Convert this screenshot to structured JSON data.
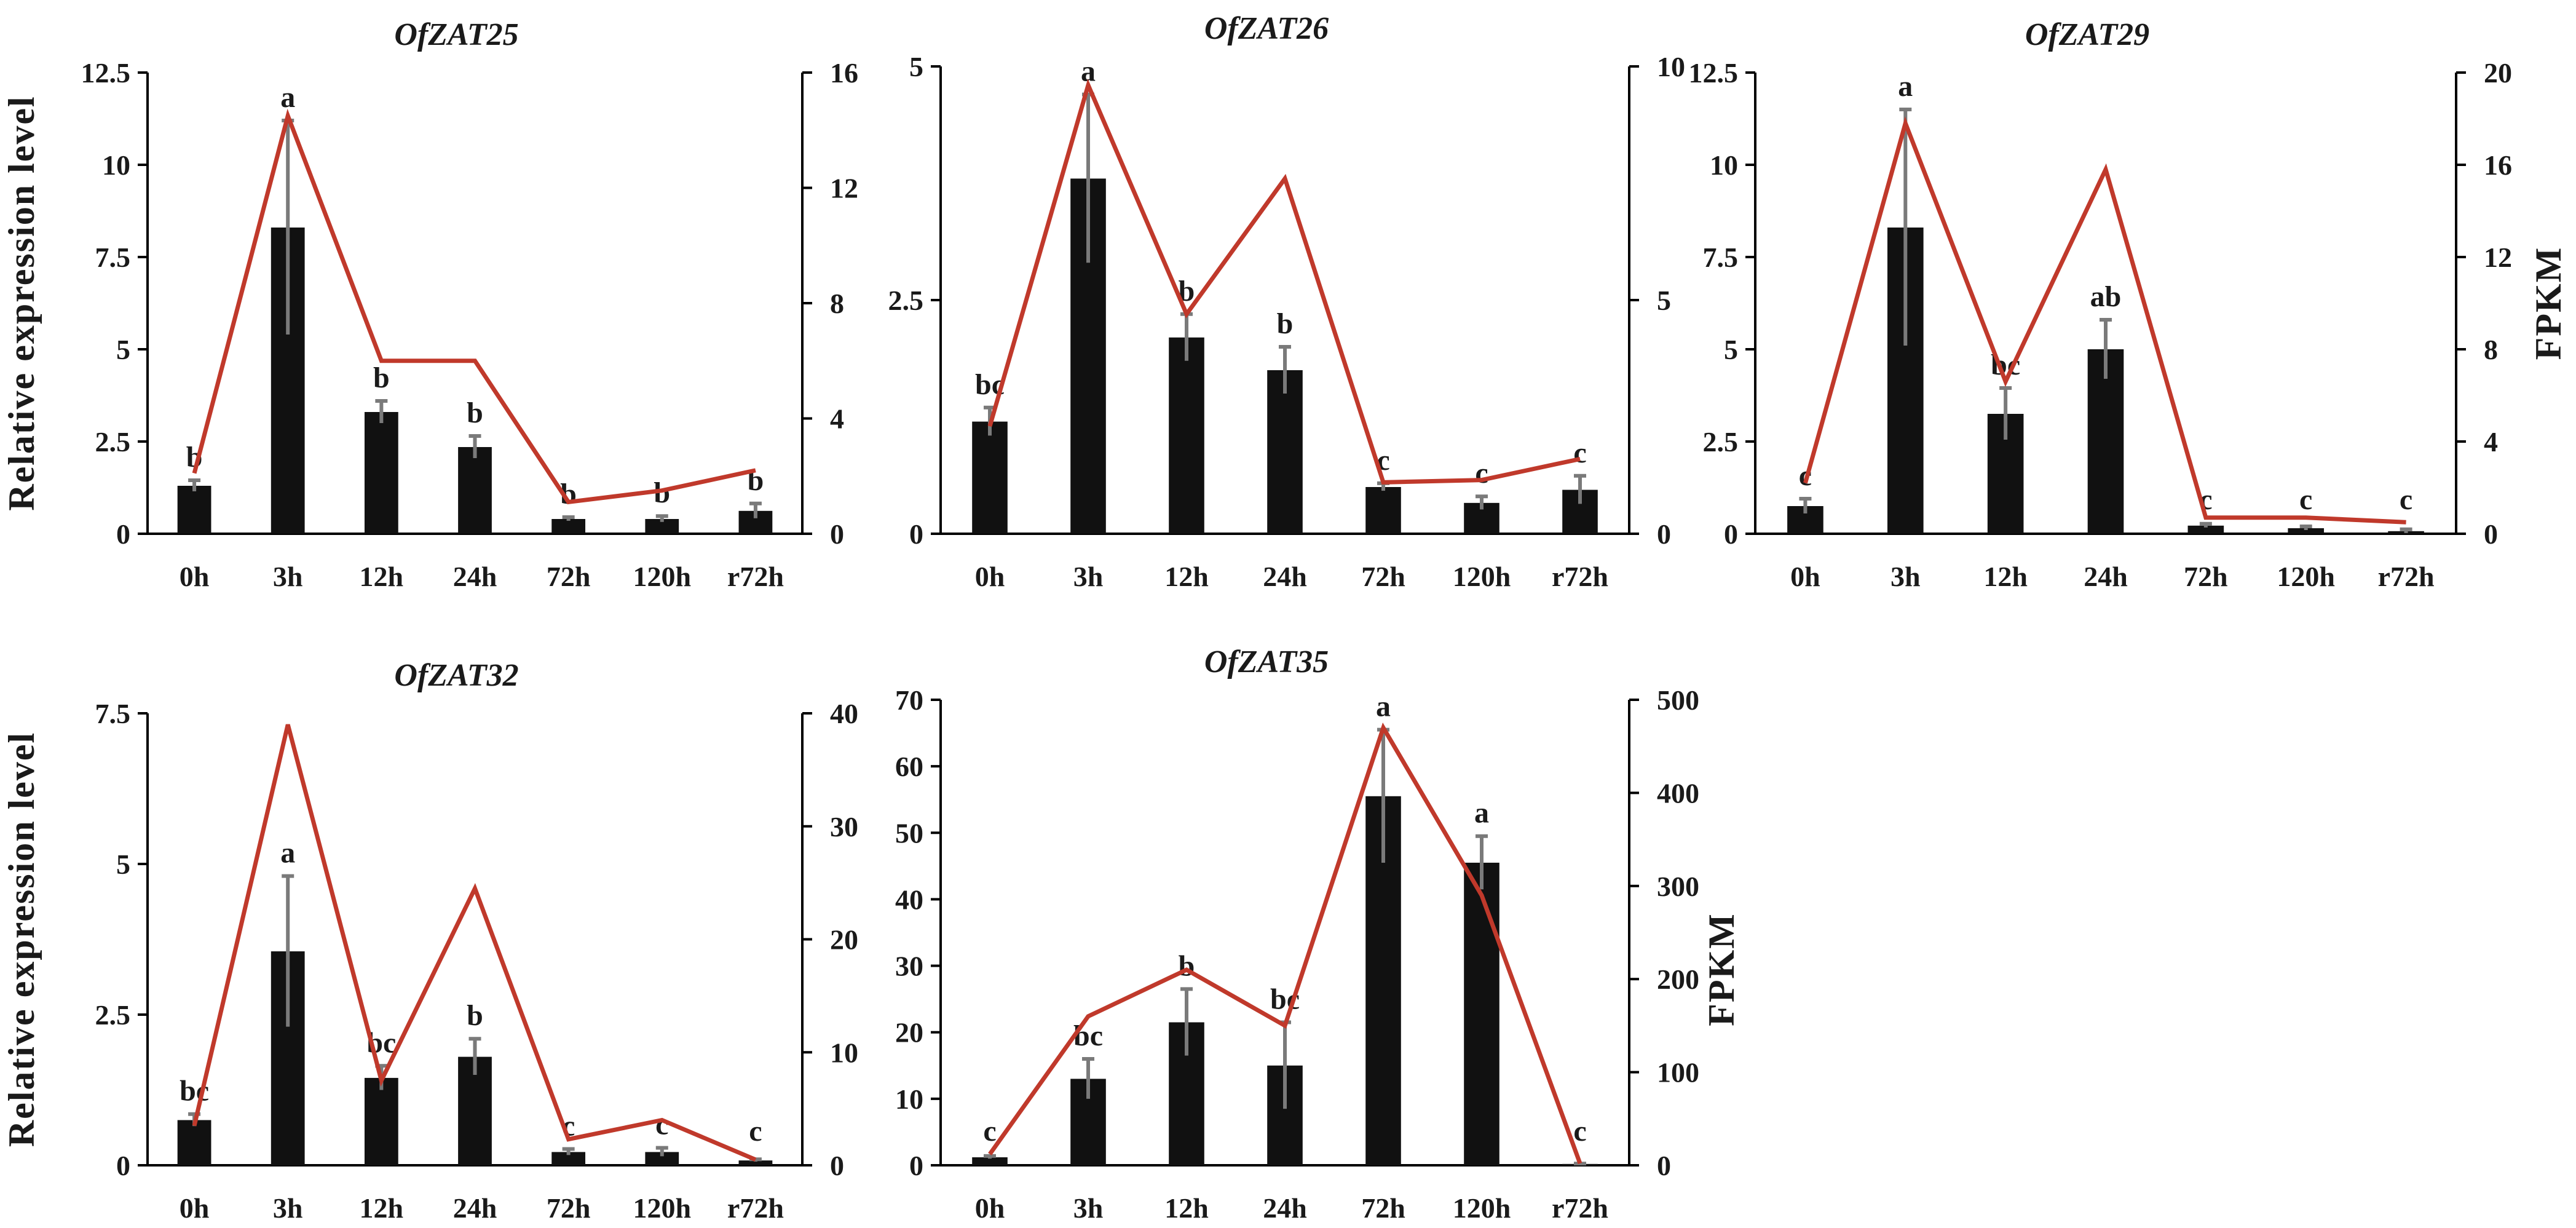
{
  "chart_data": [
    {
      "type": "bar",
      "title": "OfZAT25",
      "ylabel": "Relative expression level",
      "y2label": "",
      "categories": [
        "0h",
        "3h",
        "12h",
        "24h",
        "72h",
        "120h",
        "r72h"
      ],
      "ylim": [
        0,
        12.5
      ],
      "yticks": [
        "0",
        "2.5",
        "5",
        "7.5",
        "10",
        "12.5"
      ],
      "y2lim": [
        0,
        16
      ],
      "y2ticks": [
        "0",
        "4",
        "8",
        "12",
        "16"
      ],
      "series": [
        {
          "type": "bar",
          "axis": "left",
          "values": [
            1.3,
            8.3,
            3.3,
            2.35,
            0.4,
            0.4,
            0.62
          ],
          "errors": [
            0.15,
            2.9,
            0.3,
            0.3,
            0.05,
            0.08,
            0.2
          ],
          "color": "#111111"
        },
        {
          "type": "line",
          "axis": "right",
          "values": [
            2.1,
            14.5,
            6.0,
            6.0,
            1.1,
            1.5,
            2.2
          ],
          "color": "#c0392b"
        }
      ],
      "annotations": [
        "b",
        "a",
        "b",
        "b",
        "b",
        "b",
        "b"
      ]
    },
    {
      "type": "bar",
      "title": "OfZAT26",
      "ylabel": "",
      "y2label": "",
      "categories": [
        "0h",
        "3h",
        "12h",
        "24h",
        "72h",
        "120h",
        "r72h"
      ],
      "ylim": [
        0,
        5
      ],
      "yticks": [
        "0",
        "2.5",
        "5"
      ],
      "y2lim": [
        0,
        10
      ],
      "y2ticks": [
        "0",
        "5",
        "10"
      ],
      "series": [
        {
          "type": "bar",
          "axis": "left",
          "values": [
            1.2,
            3.8,
            2.1,
            1.75,
            0.5,
            0.33,
            0.47
          ],
          "errors": [
            0.15,
            0.9,
            0.25,
            0.25,
            0.04,
            0.07,
            0.15
          ],
          "color": "#111111"
        },
        {
          "type": "line",
          "axis": "right",
          "values": [
            2.3,
            9.6,
            4.7,
            7.6,
            1.1,
            1.15,
            1.6
          ],
          "color": "#c0392b"
        }
      ],
      "annotations": [
        "bc",
        "a",
        "b",
        "b",
        "c",
        "c",
        "c"
      ]
    },
    {
      "type": "bar",
      "title": "OfZAT29",
      "ylabel": "",
      "y2label": "FPKM",
      "categories": [
        "0h",
        "3h",
        "12h",
        "24h",
        "72h",
        "120h",
        "r72h"
      ],
      "ylim": [
        0,
        12.5
      ],
      "yticks": [
        "0",
        "2.5",
        "5",
        "7.5",
        "10",
        "12.5"
      ],
      "y2lim": [
        0,
        20
      ],
      "y2ticks": [
        "0",
        "4",
        "8",
        "12",
        "16",
        "20"
      ],
      "series": [
        {
          "type": "bar",
          "axis": "left",
          "values": [
            0.75,
            8.3,
            3.25,
            5.0,
            0.22,
            0.15,
            0.07
          ],
          "errors": [
            0.2,
            3.2,
            0.7,
            0.8,
            0.05,
            0.05,
            0.05
          ],
          "color": "#111111"
        },
        {
          "type": "line",
          "axis": "right",
          "values": [
            2.2,
            17.8,
            6.6,
            15.8,
            0.7,
            0.7,
            0.5
          ],
          "color": "#c0392b"
        }
      ],
      "annotations": [
        "c",
        "a",
        "bc",
        "ab",
        "c",
        "c",
        "c"
      ]
    },
    {
      "type": "bar",
      "title": "OfZAT32",
      "ylabel": "Relative expression level",
      "y2label": "",
      "categories": [
        "0h",
        "3h",
        "12h",
        "24h",
        "72h",
        "120h",
        "r72h"
      ],
      "ylim": [
        0,
        7.5
      ],
      "yticks": [
        "0",
        "2.5",
        "5",
        "7.5"
      ],
      "y2lim": [
        0,
        40
      ],
      "y2ticks": [
        "0",
        "10",
        "20",
        "30",
        "40"
      ],
      "series": [
        {
          "type": "bar",
          "axis": "left",
          "values": [
            0.75,
            3.55,
            1.45,
            1.8,
            0.22,
            0.22,
            0.08
          ],
          "errors": [
            0.1,
            1.25,
            0.2,
            0.3,
            0.05,
            0.07,
            0.02
          ],
          "color": "#111111"
        },
        {
          "type": "line",
          "axis": "right",
          "values": [
            3.5,
            39.0,
            7.5,
            24.5,
            2.3,
            4.0,
            0.5
          ],
          "color": "#c0392b"
        }
      ],
      "annotations": [
        "bc",
        "a",
        "bc",
        "b",
        "c",
        "c",
        "c"
      ]
    },
    {
      "type": "bar",
      "title": "OfZAT35",
      "ylabel": "",
      "y2label": "FPKM",
      "categories": [
        "0h",
        "3h",
        "12h",
        "24h",
        "72h",
        "120h",
        "r72h"
      ],
      "ylim": [
        0,
        70
      ],
      "yticks": [
        "0",
        "10",
        "20",
        "30",
        "40",
        "50",
        "60",
        "70"
      ],
      "y2lim": [
        0,
        500
      ],
      "y2ticks": [
        "0",
        "100",
        "200",
        "300",
        "400",
        "500"
      ],
      "series": [
        {
          "type": "bar",
          "axis": "left",
          "values": [
            1.2,
            13.0,
            21.5,
            15.0,
            55.5,
            45.5,
            0.2
          ],
          "errors": [
            0.2,
            3.0,
            5.0,
            6.5,
            10.0,
            4.0,
            0.05
          ],
          "color": "#111111"
        },
        {
          "type": "line",
          "axis": "right",
          "values": [
            12,
            160,
            210,
            150,
            470,
            290,
            2
          ],
          "color": "#c0392b"
        }
      ],
      "annotations": [
        "c",
        "bc",
        "b",
        "bc",
        "a",
        "a",
        "c"
      ]
    }
  ]
}
